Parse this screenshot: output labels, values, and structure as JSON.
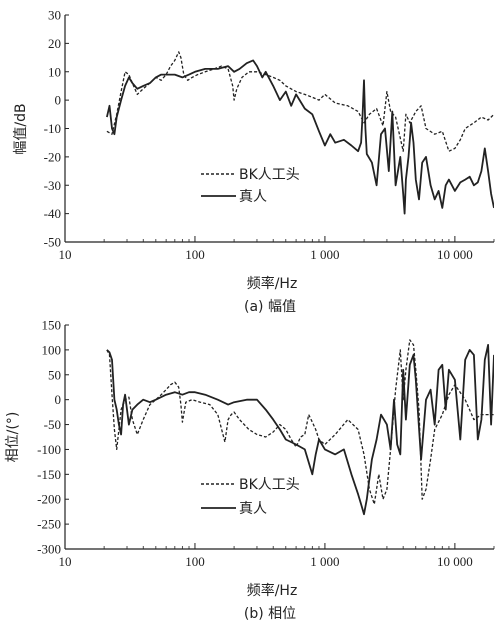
{
  "chart_data": [
    {
      "type": "line",
      "caption": "(a) 幅值",
      "xlabel": "频率/Hz",
      "ylabel": "幅值/dB",
      "xscale": "log",
      "xlim": [
        10,
        20000
      ],
      "ylim": [
        -50,
        30
      ],
      "xticks": [
        10,
        100,
        1000,
        10000
      ],
      "xtick_labels": [
        "10",
        "100",
        "1 000",
        "10 000"
      ],
      "yticks": [
        -50,
        -40,
        -30,
        -20,
        -10,
        0,
        10,
        20,
        30
      ],
      "ytick_labels": [
        "-50",
        "-40",
        "-30",
        "-20",
        "-10",
        "0",
        "10",
        "20",
        "30"
      ],
      "grid": false,
      "legend_position": "lower-left",
      "series": [
        {
          "name": "BK人工头",
          "style": "dashed",
          "x": [
            21,
            23,
            25,
            27,
            29,
            31,
            33,
            36,
            40,
            45,
            50,
            55,
            60,
            65,
            70,
            75,
            78,
            82,
            88,
            95,
            105,
            120,
            140,
            160,
            180,
            195,
            200,
            210,
            230,
            260,
            300,
            350,
            400,
            450,
            500,
            600,
            700,
            800,
            900,
            1000,
            1200,
            1500,
            1800,
            2000,
            2200,
            2500,
            2800,
            3000,
            3200,
            3500,
            4000,
            4200,
            4500,
            5000,
            5500,
            6000,
            7000,
            8000,
            9000,
            10000,
            11000,
            12000,
            14000,
            16000,
            18000,
            20000
          ],
          "y": [
            -11,
            -12,
            -5,
            3,
            10,
            9,
            6,
            2,
            4,
            6,
            8,
            7,
            9,
            12,
            14,
            17,
            15,
            9,
            7,
            8,
            9,
            10,
            11,
            12,
            11,
            5,
            0,
            4,
            8,
            10,
            10,
            9,
            8,
            7,
            5,
            3,
            2,
            1,
            0,
            2,
            -1,
            -2,
            -4,
            -8,
            -5,
            -3,
            -9,
            3,
            -4,
            -6,
            -18,
            -5,
            -8,
            -4,
            -2,
            -10,
            -12,
            -11,
            -18,
            -17,
            -14,
            -10,
            -8,
            -6,
            -7,
            -5
          ]
        },
        {
          "name": "真人",
          "style": "solid",
          "x": [
            21,
            22,
            23,
            24,
            25,
            27,
            29,
            31,
            33,
            36,
            40,
            45,
            50,
            55,
            60,
            70,
            80,
            90,
            100,
            120,
            150,
            180,
            200,
            220,
            250,
            280,
            300,
            330,
            350,
            400,
            450,
            500,
            550,
            600,
            700,
            800,
            900,
            1000,
            1100,
            1200,
            1400,
            1600,
            1800,
            1900,
            1950,
            2000,
            2050,
            2100,
            2300,
            2500,
            2700,
            2900,
            3100,
            3300,
            3500,
            3800,
            4000,
            4100,
            4200,
            4400,
            4600,
            4800,
            5000,
            5300,
            5600,
            6000,
            6500,
            7000,
            7500,
            8000,
            8500,
            9000,
            10000,
            11000,
            12000,
            13000,
            14000,
            15000,
            16000,
            17000,
            18000,
            19000,
            20000
          ],
          "y": [
            -6,
            -2,
            -10,
            -12,
            -6,
            0,
            5,
            8,
            6,
            4,
            5,
            6,
            8,
            9,
            9,
            9,
            8,
            9,
            10,
            11,
            11,
            12,
            10,
            11,
            13,
            14,
            12,
            8,
            10,
            5,
            0,
            3,
            -2,
            2,
            -3,
            -5,
            -11,
            -16,
            -12,
            -15,
            -14,
            -16,
            -18,
            -15,
            -5,
            7,
            -10,
            -19,
            -22,
            -30,
            -12,
            -10,
            -25,
            -4,
            -30,
            -20,
            -33,
            -40,
            -28,
            -20,
            -8,
            -15,
            -28,
            -35,
            -22,
            -20,
            -30,
            -35,
            -32,
            -38,
            -30,
            -28,
            -32,
            -29,
            -28,
            -27,
            -30,
            -29,
            -25,
            -17,
            -25,
            -33,
            -38
          ]
        }
      ]
    },
    {
      "type": "line",
      "caption": "(b) 相位",
      "xlabel": "频率/Hz",
      "ylabel": "相位/(°)",
      "xscale": "log",
      "xlim": [
        10,
        20000
      ],
      "ylim": [
        -300,
        150
      ],
      "xticks": [
        10,
        100,
        1000,
        10000
      ],
      "xtick_labels": [
        "10",
        "100",
        "1 000",
        "10 000"
      ],
      "yticks": [
        -300,
        -250,
        -200,
        -150,
        -100,
        -50,
        0,
        50,
        100,
        150
      ],
      "ytick_labels": [
        "-300",
        "-250",
        "-200",
        "-150",
        "-100",
        "-50",
        "0",
        "50",
        "100",
        "150"
      ],
      "grid": false,
      "legend_position": "lower-center",
      "series": [
        {
          "name": "BK人工头",
          "style": "dashed",
          "x": [
            21,
            22,
            23,
            24,
            25,
            26,
            27,
            29,
            31,
            33,
            36,
            40,
            45,
            50,
            55,
            60,
            65,
            70,
            75,
            78,
            80,
            85,
            95,
            110,
            130,
            150,
            170,
            180,
            190,
            200,
            220,
            260,
            300,
            350,
            400,
            450,
            500,
            550,
            600,
            650,
            700,
            750,
            800,
            850,
            900,
            1000,
            1200,
            1500,
            1800,
            2000,
            2200,
            2400,
            2600,
            2800,
            3000,
            3200,
            3500,
            3800,
            4000,
            4200,
            4500,
            4800,
            5000,
            5300,
            5600,
            6000,
            6500,
            7000,
            8000,
            9000,
            10000,
            12000,
            14000,
            16000,
            18000,
            20000
          ],
          "y": [
            100,
            90,
            10,
            -60,
            -100,
            -60,
            -20,
            0,
            5,
            -40,
            -70,
            -40,
            -10,
            0,
            10,
            20,
            30,
            35,
            25,
            -10,
            -45,
            -5,
            0,
            -5,
            -10,
            -30,
            -85,
            -40,
            -30,
            -25,
            -40,
            -60,
            -70,
            -75,
            -65,
            -50,
            -60,
            -80,
            -95,
            -75,
            -70,
            -30,
            -45,
            -60,
            -80,
            -90,
            -70,
            -40,
            -60,
            -110,
            -180,
            -210,
            -150,
            -200,
            -180,
            -100,
            20,
            100,
            0,
            60,
            120,
            110,
            60,
            -20,
            -200,
            -180,
            -120,
            -60,
            -30,
            10,
            30,
            0,
            -40,
            -30,
            -30,
            -30
          ]
        },
        {
          "name": "真人",
          "style": "solid",
          "x": [
            21,
            22,
            23,
            24,
            25,
            26,
            27,
            28,
            29,
            31,
            33,
            36,
            40,
            45,
            50,
            60,
            70,
            80,
            90,
            100,
            120,
            150,
            180,
            200,
            250,
            300,
            350,
            400,
            450,
            500,
            600,
            700,
            800,
            850,
            900,
            1000,
            1200,
            1400,
            1600,
            1800,
            1900,
            2000,
            2100,
            2300,
            2500,
            2700,
            3000,
            3200,
            3400,
            3600,
            3800,
            4000,
            4200,
            4500,
            4800,
            5000,
            5500,
            6000,
            6500,
            7000,
            7500,
            8000,
            8500,
            9000,
            10000,
            11000,
            12000,
            13000,
            14000,
            15000,
            16000,
            17000,
            18000,
            19000,
            20000
          ],
          "y": [
            100,
            95,
            80,
            0,
            -20,
            -50,
            -70,
            -10,
            10,
            -50,
            -20,
            -10,
            0,
            -5,
            0,
            10,
            15,
            10,
            15,
            15,
            10,
            0,
            -10,
            -5,
            0,
            0,
            -20,
            -40,
            -60,
            -80,
            -90,
            -100,
            -150,
            -110,
            -80,
            -100,
            -110,
            -100,
            -150,
            -190,
            -210,
            -230,
            -200,
            -120,
            -80,
            -30,
            -50,
            -100,
            0,
            -90,
            -110,
            60,
            -40,
            70,
            90,
            40,
            -120,
            0,
            20,
            -50,
            60,
            70,
            -20,
            60,
            40,
            -80,
            80,
            100,
            90,
            -80,
            -40,
            80,
            110,
            -50,
            90
          ]
        }
      ]
    }
  ]
}
